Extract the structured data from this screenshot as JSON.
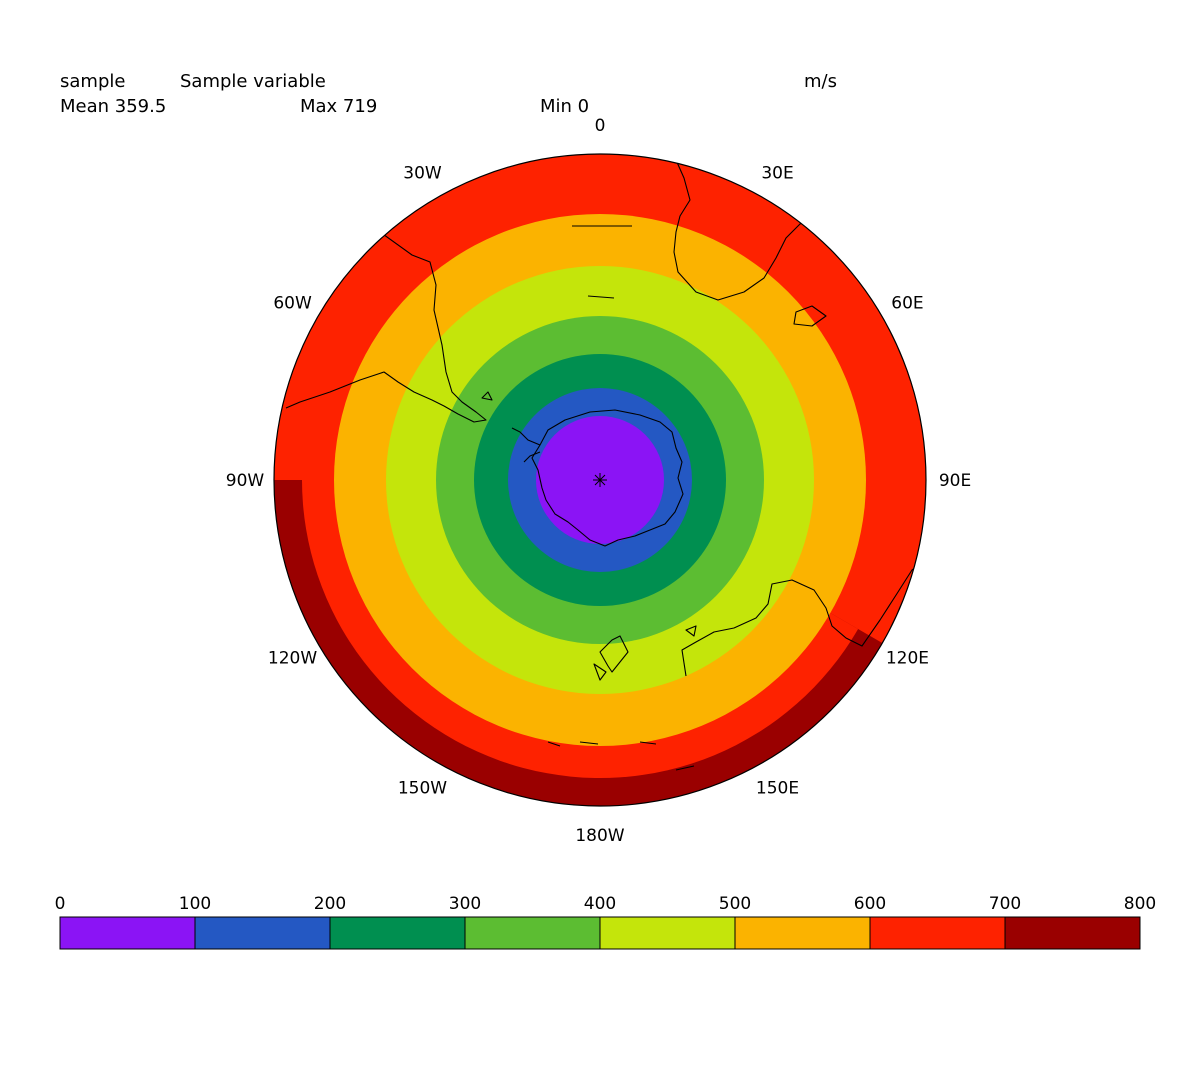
{
  "header": {
    "variable_name": "sample",
    "long_name": "Sample variable",
    "units": "m/s",
    "mean_label": "Mean 359.5",
    "max_label": "Max 719",
    "min_label": "Min 0"
  },
  "map": {
    "projection": "south-polar-stereographic",
    "longitude_labels": [
      {
        "text": "0",
        "lon": 0
      },
      {
        "text": "30E",
        "lon": 30
      },
      {
        "text": "60E",
        "lon": 60
      },
      {
        "text": "90E",
        "lon": 90
      },
      {
        "text": "120E",
        "lon": 120
      },
      {
        "text": "150E",
        "lon": 150
      },
      {
        "text": "180W",
        "lon": 180
      },
      {
        "text": "150W",
        "lon": -150
      },
      {
        "text": "120W",
        "lon": -120
      },
      {
        "text": "90W",
        "lon": -90
      },
      {
        "text": "60W",
        "lon": -60
      },
      {
        "text": "30W",
        "lon": -30
      }
    ]
  },
  "colorbar": {
    "ticks": [
      "0",
      "100",
      "200",
      "300",
      "400",
      "500",
      "600",
      "700",
      "800"
    ],
    "colors": [
      "#8b14f5",
      "#2458c3",
      "#008f50",
      "#5cbd32",
      "#c4e50b",
      "#fbb300",
      "#fe2200",
      "#9a0000"
    ]
  },
  "chart_data": {
    "type": "heatmap",
    "value_range": [
      0,
      719
    ],
    "mean": 359.5,
    "levels": [
      0,
      100,
      200,
      300,
      400,
      500,
      600,
      700,
      800
    ],
    "colors": [
      "#8b14f5",
      "#2458c3",
      "#008f50",
      "#5cbd32",
      "#c4e50b",
      "#fbb300",
      "#fe2200",
      "#9a0000"
    ],
    "units": "m/s"
  }
}
